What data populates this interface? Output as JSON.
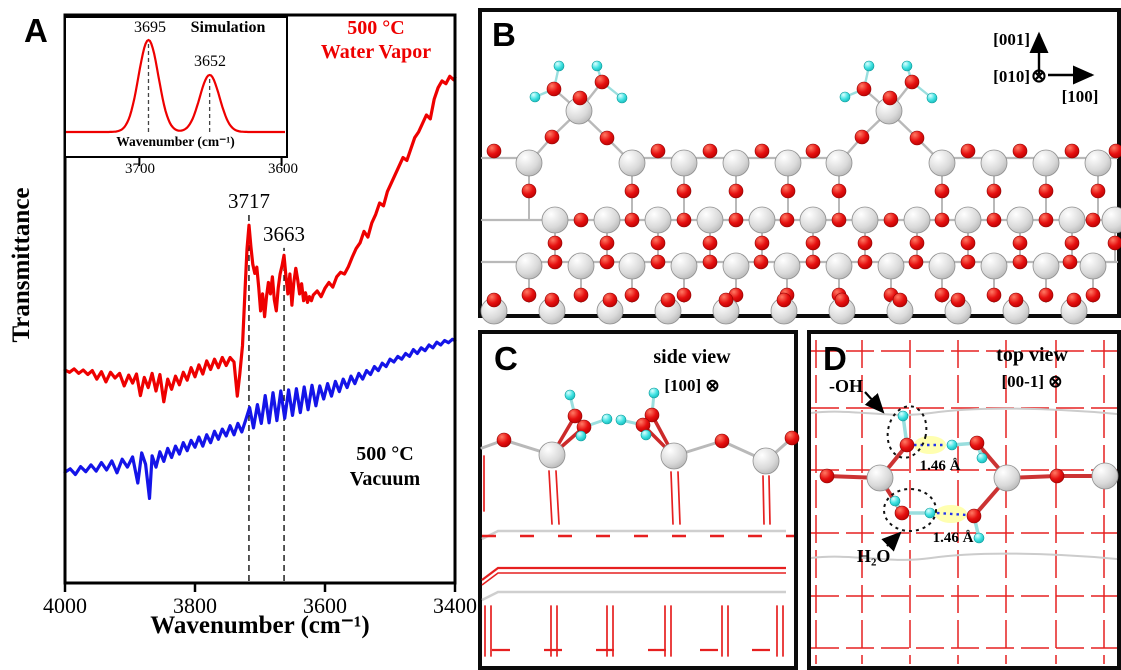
{
  "colors": {
    "curve_red": "#ee0000",
    "curve_blue": "#1414e8",
    "atom_metal": "#d6d6d6",
    "atom_oxygen": "#e01010",
    "atom_hydrogen": "#3fe2e2",
    "hbond_highlight": "#ffffb0",
    "hbond_dotted": "#2233ee",
    "lattice_red": "#e62020",
    "lattice_gray": "#cccccc"
  },
  "panel_a": {
    "label": "A",
    "ylabel": "Transmittance",
    "xlabel": "Wavenumber (cm⁻¹)",
    "curve_top_label": [
      "500 °C",
      "Water Vapor"
    ],
    "curve_bottom_label": [
      "500 °C",
      "Vacuum"
    ]
  },
  "panel_b": {
    "label": "B",
    "axis_up": "[001]",
    "axis_into": "[010]",
    "axis_right": "[100]",
    "into_symbol": "⊗"
  },
  "panel_c": {
    "label": "C",
    "view_label": "side view",
    "direction_label": "[100] ⊗"
  },
  "panel_d": {
    "label": "D",
    "view_label": "top view",
    "direction_label": "[00-1] ⊗",
    "oh_label": "-OH",
    "water_label": "H₂O",
    "distance_labels": [
      "1.46 Å",
      "1.46 Å"
    ]
  },
  "chart_data": {
    "type": "line",
    "title": "",
    "xlabel": "Wavenumber (cm⁻¹)",
    "ylabel": "Transmittance",
    "xlim": [
      4000,
      3400
    ],
    "ylim": [
      0,
      1
    ],
    "x_axis_reversed": true,
    "x_ticks": [
      4000,
      3800,
      3600,
      3400
    ],
    "grid": false,
    "legend": "inline-text",
    "peak_annotations": [
      {
        "label": "3717",
        "x": 3717,
        "line_top": 0.648
      },
      {
        "label": "3663",
        "x": 3663,
        "line_top": 0.59
      }
    ],
    "series": [
      {
        "name": "500 °C Water Vapor",
        "color": "#ee0000",
        "label_lines": [
          "500 °C",
          "Water Vapor"
        ],
        "points": [
          [
            4000,
            0.375
          ],
          [
            3993,
            0.371
          ],
          [
            3986,
            0.377
          ],
          [
            3979,
            0.369
          ],
          [
            3972,
            0.375
          ],
          [
            3965,
            0.367
          ],
          [
            3958,
            0.374
          ],
          [
            3951,
            0.359
          ],
          [
            3944,
            0.372
          ],
          [
            3937,
            0.354
          ],
          [
            3930,
            0.371
          ],
          [
            3923,
            0.361
          ],
          [
            3916,
            0.369
          ],
          [
            3909,
            0.347
          ],
          [
            3902,
            0.366
          ],
          [
            3896,
            0.352
          ],
          [
            3890,
            0.368
          ],
          [
            3884,
            0.33
          ],
          [
            3878,
            0.362
          ],
          [
            3872,
            0.344
          ],
          [
            3866,
            0.369
          ],
          [
            3860,
            0.338
          ],
          [
            3854,
            0.367
          ],
          [
            3848,
            0.319
          ],
          [
            3842,
            0.359
          ],
          [
            3836,
            0.341
          ],
          [
            3830,
            0.364
          ],
          [
            3824,
            0.349
          ],
          [
            3818,
            0.371
          ],
          [
            3812,
            0.357
          ],
          [
            3806,
            0.379
          ],
          [
            3800,
            0.363
          ],
          [
            3794,
            0.384
          ],
          [
            3788,
            0.368
          ],
          [
            3782,
            0.391
          ],
          [
            3776,
            0.376
          ],
          [
            3770,
            0.394
          ],
          [
            3764,
            0.379
          ],
          [
            3758,
            0.397
          ],
          [
            3752,
            0.383
          ],
          [
            3746,
            0.397
          ],
          [
            3740,
            0.389
          ],
          [
            3735,
            0.329
          ],
          [
            3731,
            0.368
          ],
          [
            3727,
            0.418
          ],
          [
            3723,
            0.518
          ],
          [
            3720,
            0.588
          ],
          [
            3717,
            0.63
          ],
          [
            3714,
            0.592
          ],
          [
            3711,
            0.561
          ],
          [
            3708,
            0.545
          ],
          [
            3705,
            0.556
          ],
          [
            3702,
            0.521
          ],
          [
            3699,
            0.479
          ],
          [
            3696,
            0.509
          ],
          [
            3693,
            0.469
          ],
          [
            3690,
            0.504
          ],
          [
            3687,
            0.529
          ],
          [
            3684,
            0.509
          ],
          [
            3681,
            0.539
          ],
          [
            3678,
            0.499
          ],
          [
            3675,
            0.479
          ],
          [
            3672,
            0.519
          ],
          [
            3669,
            0.544
          ],
          [
            3666,
            0.559
          ],
          [
            3663,
            0.577
          ],
          [
            3660,
            0.539
          ],
          [
            3657,
            0.509
          ],
          [
            3654,
            0.544
          ],
          [
            3651,
            0.489
          ],
          [
            3648,
            0.529
          ],
          [
            3645,
            0.554
          ],
          [
            3642,
            0.534
          ],
          [
            3639,
            0.509
          ],
          [
            3636,
            0.527
          ],
          [
            3633,
            0.497
          ],
          [
            3630,
            0.511
          ],
          [
            3627,
            0.494
          ],
          [
            3624,
            0.504
          ],
          [
            3621,
            0.497
          ],
          [
            3618,
            0.507
          ],
          [
            3612,
            0.514
          ],
          [
            3606,
            0.504
          ],
          [
            3600,
            0.519
          ],
          [
            3594,
            0.529
          ],
          [
            3588,
            0.521
          ],
          [
            3582,
            0.539
          ],
          [
            3576,
            0.547
          ],
          [
            3570,
            0.544
          ],
          [
            3564,
            0.557
          ],
          [
            3558,
            0.574
          ],
          [
            3552,
            0.589
          ],
          [
            3546,
            0.599
          ],
          [
            3540,
            0.619
          ],
          [
            3534,
            0.609
          ],
          [
            3528,
            0.634
          ],
          [
            3522,
            0.649
          ],
          [
            3516,
            0.669
          ],
          [
            3510,
            0.664
          ],
          [
            3504,
            0.689
          ],
          [
            3498,
            0.704
          ],
          [
            3492,
            0.719
          ],
          [
            3486,
            0.734
          ],
          [
            3480,
            0.749
          ],
          [
            3474,
            0.744
          ],
          [
            3468,
            0.764
          ],
          [
            3462,
            0.784
          ],
          [
            3456,
            0.794
          ],
          [
            3450,
            0.809
          ],
          [
            3444,
            0.824
          ],
          [
            3438,
            0.817
          ],
          [
            3432,
            0.852
          ],
          [
            3426,
            0.872
          ],
          [
            3420,
            0.884
          ],
          [
            3414,
            0.879
          ],
          [
            3408,
            0.892
          ],
          [
            3402,
            0.886
          ],
          [
            3400,
            0.89
          ]
        ]
      },
      {
        "name": "500 °C Vacuum",
        "color": "#1414e8",
        "label_lines": [
          "500 °C",
          "Vacuum"
        ],
        "points": [
          [
            4000,
            0.195
          ],
          [
            3992,
            0.201
          ],
          [
            3984,
            0.191
          ],
          [
            3976,
            0.205
          ],
          [
            3968,
            0.196
          ],
          [
            3960,
            0.208
          ],
          [
            3952,
            0.197
          ],
          [
            3944,
            0.212
          ],
          [
            3936,
            0.199
          ],
          [
            3928,
            0.215
          ],
          [
            3920,
            0.194
          ],
          [
            3912,
            0.218
          ],
          [
            3904,
            0.204
          ],
          [
            3896,
            0.222
          ],
          [
            3888,
            0.176
          ],
          [
            3882,
            0.229
          ],
          [
            3876,
            0.209
          ],
          [
            3870,
            0.149
          ],
          [
            3866,
            0.224
          ],
          [
            3860,
            0.204
          ],
          [
            3854,
            0.231
          ],
          [
            3848,
            0.214
          ],
          [
            3842,
            0.237
          ],
          [
            3836,
            0.221
          ],
          [
            3830,
            0.241
          ],
          [
            3824,
            0.227
          ],
          [
            3818,
            0.247
          ],
          [
            3812,
            0.233
          ],
          [
            3806,
            0.251
          ],
          [
            3800,
            0.239
          ],
          [
            3794,
            0.257
          ],
          [
            3788,
            0.241
          ],
          [
            3782,
            0.261
          ],
          [
            3776,
            0.247
          ],
          [
            3770,
            0.267
          ],
          [
            3764,
            0.253
          ],
          [
            3758,
            0.271
          ],
          [
            3752,
            0.259
          ],
          [
            3746,
            0.277
          ],
          [
            3740,
            0.261
          ],
          [
            3734,
            0.281
          ],
          [
            3728,
            0.266
          ],
          [
            3722,
            0.287
          ],
          [
            3716,
            0.309
          ],
          [
            3710,
            0.273
          ],
          [
            3704,
            0.314
          ],
          [
            3698,
            0.281
          ],
          [
            3692,
            0.33
          ],
          [
            3686,
            0.282
          ],
          [
            3680,
            0.335
          ],
          [
            3674,
            0.286
          ],
          [
            3668,
            0.338
          ],
          [
            3662,
            0.29
          ],
          [
            3656,
            0.34
          ],
          [
            3650,
            0.295
          ],
          [
            3644,
            0.342
          ],
          [
            3638,
            0.3
          ],
          [
            3632,
            0.345
          ],
          [
            3626,
            0.305
          ],
          [
            3620,
            0.348
          ],
          [
            3614,
            0.312
          ],
          [
            3608,
            0.347
          ],
          [
            3602,
            0.324
          ],
          [
            3596,
            0.351
          ],
          [
            3590,
            0.329
          ],
          [
            3584,
            0.355
          ],
          [
            3578,
            0.337
          ],
          [
            3572,
            0.359
          ],
          [
            3566,
            0.344
          ],
          [
            3560,
            0.364
          ],
          [
            3554,
            0.351
          ],
          [
            3548,
            0.369
          ],
          [
            3542,
            0.359
          ],
          [
            3536,
            0.374
          ],
          [
            3530,
            0.367
          ],
          [
            3524,
            0.381
          ],
          [
            3518,
            0.374
          ],
          [
            3512,
            0.387
          ],
          [
            3506,
            0.381
          ],
          [
            3500,
            0.394
          ],
          [
            3494,
            0.389
          ],
          [
            3488,
            0.399
          ],
          [
            3482,
            0.394
          ],
          [
            3476,
            0.404
          ],
          [
            3470,
            0.399
          ],
          [
            3464,
            0.411
          ],
          [
            3458,
            0.404
          ],
          [
            3452,
            0.414
          ],
          [
            3446,
            0.409
          ],
          [
            3440,
            0.419
          ],
          [
            3434,
            0.414
          ],
          [
            3428,
            0.424
          ],
          [
            3422,
            0.419
          ],
          [
            3416,
            0.427
          ],
          [
            3410,
            0.423
          ],
          [
            3404,
            0.429
          ],
          [
            3400,
            0.427
          ]
        ]
      }
    ],
    "inset": {
      "title": "Simulation",
      "xlabel": "Wavenumber (cm⁻¹)",
      "xlim": [
        3753,
        3599
      ],
      "x_ticks": [
        3700,
        3600
      ],
      "peaks": [
        {
          "label": "3695",
          "x": 3695,
          "height": 1.0,
          "width": 7
        },
        {
          "label": "3652",
          "x": 3652,
          "height": 0.62,
          "width": 7
        }
      ]
    }
  }
}
